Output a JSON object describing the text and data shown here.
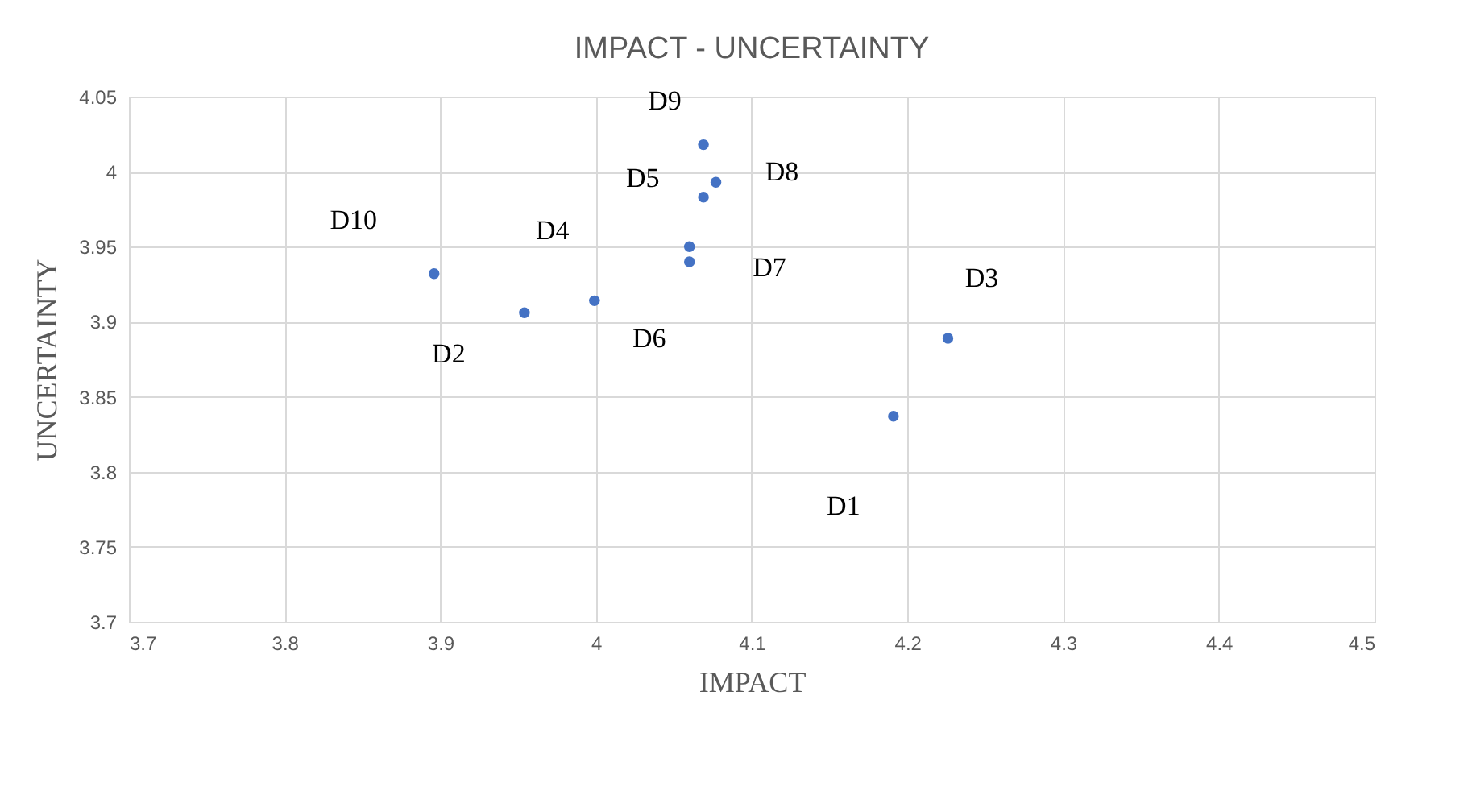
{
  "chart_data": {
    "type": "scatter",
    "title": "IMPACT - UNCERTAINTY",
    "xlabel": "IMPACT",
    "ylabel": "UNCERTAINTY",
    "x": [
      3.896,
      3.954,
      3.999,
      4.06,
      4.06,
      4.069,
      4.077,
      4.069,
      4.226,
      4.191
    ],
    "series": [
      {
        "color": "#4472c4",
        "values": [
          3.932,
          3.906,
          3.914,
          3.95,
          3.94,
          4.018,
          3.993,
          3.983,
          3.889,
          3.837
        ]
      }
    ],
    "xlim": [
      3.7,
      4.5
    ],
    "xticks": [
      3.7,
      3.8,
      3.9,
      4,
      4.1,
      4.2,
      4.3,
      4.4,
      4.5
    ],
    "ylim": [
      3.7,
      4.05
    ],
    "yticks": [
      3.7,
      3.75,
      3.8,
      3.85,
      3.9,
      3.95,
      4,
      4.05
    ],
    "grid": true,
    "marker": "circle",
    "annotations": [
      {
        "text": "D10",
        "x": 3.896,
        "y": 3.932
      },
      {
        "text": "D2",
        "x": 3.954,
        "y": 3.906
      },
      {
        "text": "D4",
        "x": 3.999,
        "y": 3.914
      },
      {
        "text": "D5",
        "x": 4.06,
        "y": 3.95
      },
      {
        "text": "D6",
        "x": 4.06,
        "y": 3.94
      },
      {
        "text": "D9",
        "x": 4.069,
        "y": 4.018
      },
      {
        "text": "D8",
        "x": 4.077,
        "y": 3.993
      },
      {
        "text": "D7",
        "x": 4.069,
        "y": 3.983
      },
      {
        "text": "D3",
        "x": 4.226,
        "y": 3.889
      },
      {
        "text": "D1",
        "x": 4.191,
        "y": 3.837
      }
    ]
  }
}
